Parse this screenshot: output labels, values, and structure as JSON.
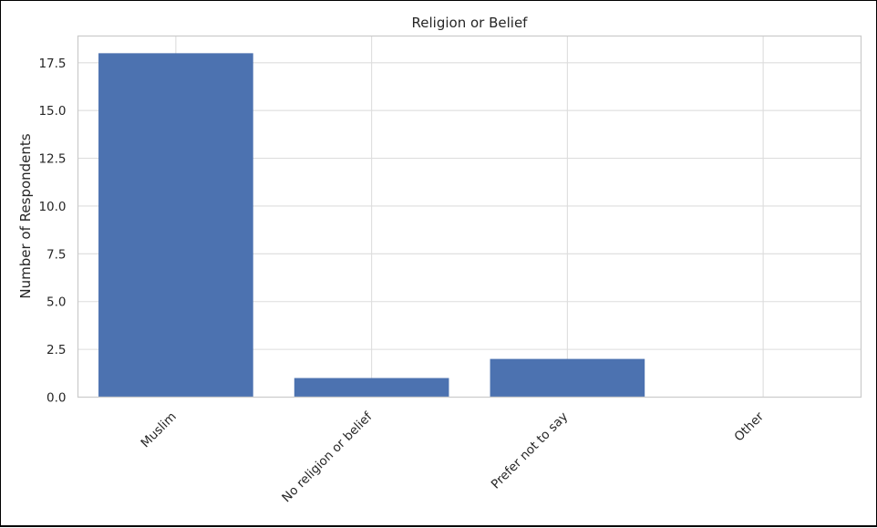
{
  "chart_data": {
    "type": "bar",
    "title": "Religion or Belief",
    "xlabel": "",
    "ylabel": "Number of Respondents",
    "categories": [
      "Muslim",
      "No religion or belief",
      "Prefer not to say",
      "Other"
    ],
    "values": [
      18,
      1,
      2,
      0
    ],
    "ylim": [
      0,
      18.9
    ],
    "yticks": [
      0,
      2.5,
      5,
      7.5,
      10,
      12.5,
      15,
      17.5
    ],
    "ytick_labels": [
      "0.0",
      "2.5",
      "5.0",
      "7.5",
      "10.0",
      "12.5",
      "15.0",
      "17.5"
    ],
    "grid": true,
    "bar_color": "#4c72b0",
    "grid_color": "#dddddd",
    "spine_color": "#cccccc"
  }
}
